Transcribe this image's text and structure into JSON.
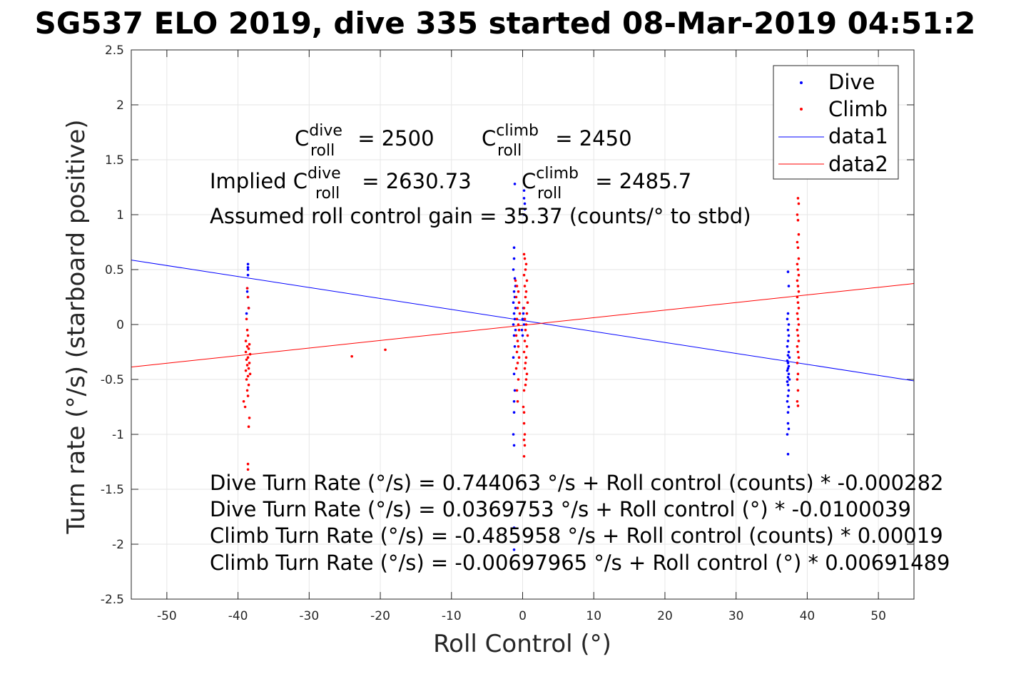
{
  "chart_data": {
    "type": "scatter",
    "title": "SG537 ELO 2019, dive 335 started 08-Mar-2019 04:51:2",
    "xlabel": "Roll Control (°)",
    "ylabel": "Turn rate (°/s) (starboard positive)",
    "xlim": [
      -55,
      55
    ],
    "ylim": [
      -2.5,
      2.5
    ],
    "x_ticks": [
      -50,
      -40,
      -30,
      -20,
      -10,
      0,
      10,
      20,
      30,
      40,
      50
    ],
    "y_ticks": [
      -2.5,
      -2,
      -1.5,
      -1,
      -0.5,
      0,
      0.5,
      1,
      1.5,
      2,
      2.5
    ],
    "grid": true,
    "legend_position": "top-right",
    "colors": {
      "dive": "#0000ff",
      "climb": "#ff0000",
      "axes": "#262626",
      "grid": "#e6e6e6"
    },
    "series": [
      {
        "name": "Dive",
        "kind": "points",
        "color": "#0000ff",
        "points": [
          [
            -38.6,
            0.55
          ],
          [
            -38.6,
            0.52
          ],
          [
            -38.6,
            0.5
          ],
          [
            -38.6,
            0.45
          ],
          [
            -38.7,
            0.33
          ],
          [
            -38.7,
            0.3
          ],
          [
            -38.6,
            0.25
          ],
          [
            -38.5,
            0.15
          ],
          [
            -38.8,
            0.1
          ],
          [
            -1.2,
            0.7
          ],
          [
            -1.2,
            0.6
          ],
          [
            -1.3,
            0.5
          ],
          [
            -1.1,
            0.42
          ],
          [
            -1.0,
            0.35
          ],
          [
            -1.2,
            0.3
          ],
          [
            -1.1,
            0.25
          ],
          [
            -1.3,
            0.2
          ],
          [
            -1.0,
            0.15
          ],
          [
            -1.2,
            0.1
          ],
          [
            -1.1,
            0.05
          ],
          [
            -1.3,
            0.0
          ],
          [
            -1.0,
            -0.05
          ],
          [
            -1.2,
            -0.1
          ],
          [
            -1.1,
            -0.2
          ],
          [
            -1.3,
            -0.3
          ],
          [
            -1.2,
            -0.45
          ],
          [
            -1.1,
            -0.6
          ],
          [
            -1.2,
            -0.7
          ],
          [
            -1.2,
            -0.8
          ],
          [
            -1.3,
            -1.0
          ],
          [
            -1.2,
            -1.1
          ],
          [
            -1.2,
            -1.85
          ],
          [
            -1.2,
            -2.05
          ],
          [
            -1.1,
            1.28
          ],
          [
            0.2,
            1.22
          ],
          [
            0.2,
            1.15
          ],
          [
            0.3,
            1.1
          ],
          [
            0.3,
            1.05
          ],
          [
            0.2,
            1.0
          ],
          [
            0.1,
            0.15
          ],
          [
            0.0,
            0.05
          ],
          [
            0.2,
            0.0
          ],
          [
            -0.1,
            -0.05
          ],
          [
            0.1,
            0.1
          ],
          [
            0.3,
            0.05
          ],
          [
            0.0,
            -0.1
          ],
          [
            37.3,
            0.48
          ],
          [
            37.4,
            0.35
          ],
          [
            37.3,
            0.1
          ],
          [
            37.2,
            0.05
          ],
          [
            37.4,
            0.0
          ],
          [
            37.3,
            -0.05
          ],
          [
            37.4,
            -0.1
          ],
          [
            37.3,
            -0.15
          ],
          [
            37.2,
            -0.2
          ],
          [
            37.4,
            -0.25
          ],
          [
            37.3,
            -0.28
          ],
          [
            37.5,
            -0.3
          ],
          [
            37.2,
            -0.33
          ],
          [
            37.3,
            -0.35
          ],
          [
            37.4,
            -0.38
          ],
          [
            37.3,
            -0.4
          ],
          [
            37.2,
            -0.42
          ],
          [
            37.4,
            -0.45
          ],
          [
            37.3,
            -0.48
          ],
          [
            37.5,
            -0.5
          ],
          [
            37.2,
            -0.52
          ],
          [
            37.3,
            -0.55
          ],
          [
            37.4,
            -0.6
          ],
          [
            37.3,
            -0.65
          ],
          [
            37.2,
            -0.7
          ],
          [
            37.4,
            -0.75
          ],
          [
            37.3,
            -0.8
          ],
          [
            37.3,
            -0.9
          ],
          [
            37.4,
            -0.95
          ],
          [
            37.2,
            -1.0
          ],
          [
            37.3,
            -1.18
          ]
        ]
      },
      {
        "name": "Climb",
        "kind": "points",
        "color": "#ff0000",
        "points": [
          [
            -38.7,
            0.33
          ],
          [
            -38.6,
            0.25
          ],
          [
            -38.5,
            0.15
          ],
          [
            -38.8,
            0.05
          ],
          [
            -38.7,
            -0.05
          ],
          [
            -38.6,
            -0.1
          ],
          [
            -38.9,
            -0.15
          ],
          [
            -38.4,
            -0.18
          ],
          [
            -38.7,
            -0.2
          ],
          [
            -38.5,
            -0.22
          ],
          [
            -38.9,
            -0.25
          ],
          [
            -38.3,
            -0.27
          ],
          [
            -38.6,
            -0.3
          ],
          [
            -38.8,
            -0.32
          ],
          [
            -38.4,
            -0.35
          ],
          [
            -38.7,
            -0.37
          ],
          [
            -38.5,
            -0.4
          ],
          [
            -38.9,
            -0.42
          ],
          [
            -38.3,
            -0.45
          ],
          [
            -38.6,
            -0.47
          ],
          [
            -38.8,
            -0.5
          ],
          [
            -38.5,
            -0.55
          ],
          [
            -38.7,
            -0.6
          ],
          [
            -38.6,
            -0.65
          ],
          [
            -39.2,
            -0.7
          ],
          [
            -39.0,
            -0.75
          ],
          [
            -38.4,
            -0.85
          ],
          [
            -38.5,
            -0.93
          ],
          [
            -38.6,
            -1.27
          ],
          [
            -38.6,
            -1.32
          ],
          [
            -24.0,
            -0.29
          ],
          [
            -19.3,
            -0.23
          ],
          [
            -1.0,
            0.4
          ],
          [
            -0.8,
            0.35
          ],
          [
            -0.6,
            0.3
          ],
          [
            -0.9,
            0.25
          ],
          [
            -0.5,
            0.2
          ],
          [
            -0.7,
            0.15
          ],
          [
            -0.4,
            0.1
          ],
          [
            -0.8,
            0.05
          ],
          [
            -0.6,
            0.0
          ],
          [
            -0.5,
            -0.05
          ],
          [
            -0.9,
            -0.1
          ],
          [
            -0.7,
            -0.15
          ],
          [
            -0.6,
            -0.2
          ],
          [
            -0.8,
            -0.25
          ],
          [
            -0.5,
            -0.3
          ],
          [
            -0.7,
            -0.35
          ],
          [
            -0.9,
            -0.4
          ],
          [
            -0.6,
            -0.5
          ],
          [
            -0.8,
            -0.6
          ],
          [
            -0.7,
            -0.7
          ],
          [
            0.2,
            0.64
          ],
          [
            0.3,
            0.6
          ],
          [
            0.5,
            0.55
          ],
          [
            0.4,
            0.5
          ],
          [
            0.2,
            0.45
          ],
          [
            0.6,
            0.4
          ],
          [
            0.3,
            0.35
          ],
          [
            0.5,
            0.3
          ],
          [
            0.4,
            0.25
          ],
          [
            0.7,
            0.2
          ],
          [
            0.2,
            0.15
          ],
          [
            0.6,
            0.1
          ],
          [
            0.3,
            0.05
          ],
          [
            0.5,
            0.0
          ],
          [
            0.4,
            -0.05
          ],
          [
            0.7,
            -0.1
          ],
          [
            0.3,
            -0.15
          ],
          [
            0.6,
            -0.2
          ],
          [
            0.2,
            -0.25
          ],
          [
            0.5,
            -0.3
          ],
          [
            0.4,
            -0.35
          ],
          [
            0.3,
            -0.4
          ],
          [
            0.6,
            -0.45
          ],
          [
            0.5,
            -0.5
          ],
          [
            0.4,
            -0.55
          ],
          [
            0.2,
            -0.6
          ],
          [
            0.1,
            -0.75
          ],
          [
            0.2,
            -0.8
          ],
          [
            0.2,
            -0.9
          ],
          [
            0.3,
            -1.0
          ],
          [
            0.2,
            -1.05
          ],
          [
            0.3,
            -1.1
          ],
          [
            0.2,
            -1.2
          ],
          [
            38.7,
            1.15
          ],
          [
            38.8,
            1.1
          ],
          [
            38.6,
            1.0
          ],
          [
            38.7,
            0.95
          ],
          [
            38.8,
            0.82
          ],
          [
            38.6,
            0.75
          ],
          [
            38.7,
            0.7
          ],
          [
            38.8,
            0.6
          ],
          [
            38.6,
            0.55
          ],
          [
            38.7,
            0.5
          ],
          [
            38.8,
            0.45
          ],
          [
            38.6,
            0.4
          ],
          [
            38.7,
            0.35
          ],
          [
            38.8,
            0.3
          ],
          [
            38.6,
            0.25
          ],
          [
            38.7,
            0.2
          ],
          [
            38.8,
            0.15
          ],
          [
            38.6,
            0.1
          ],
          [
            38.7,
            0.05
          ],
          [
            38.8,
            0.0
          ],
          [
            38.6,
            -0.05
          ],
          [
            38.7,
            -0.1
          ],
          [
            38.8,
            -0.15
          ],
          [
            38.6,
            -0.2
          ],
          [
            38.7,
            -0.25
          ],
          [
            38.8,
            -0.3
          ],
          [
            38.6,
            -0.35
          ],
          [
            38.7,
            -0.45
          ],
          [
            38.6,
            -0.5
          ],
          [
            38.7,
            -0.6
          ],
          [
            38.6,
            -0.7
          ],
          [
            38.7,
            -0.74
          ]
        ]
      },
      {
        "name": "data1",
        "kind": "line",
        "color": "#0000ff",
        "x": [
          -55,
          55
        ],
        "y": [
          0.587,
          -0.513
        ]
      },
      {
        "name": "data2",
        "kind": "line",
        "color": "#ff0000",
        "x": [
          -55,
          55
        ],
        "y": [
          -0.387,
          0.373
        ]
      }
    ],
    "annotations": {
      "c_roll_dive_prefix": "C",
      "c_roll_dive_sup": "dive",
      "c_roll_dive_sub": "roll",
      "c_roll_dive_value": " = 2500",
      "c_roll_climb_prefix": "C",
      "c_roll_climb_sup": "climb",
      "c_roll_climb_sub": "roll",
      "c_roll_climb_value": " = 2450",
      "implied_prefix": "Implied C",
      "implied_dive_sup": "dive",
      "implied_dive_sub": "roll",
      "implied_dive_value": " = 2630.73",
      "implied_climb_prefix": "C",
      "implied_climb_sup": "climb",
      "implied_climb_sub": "roll",
      "implied_climb_value": " = 2485.7",
      "gain_text": "Assumed roll control gain = 35.37 (counts/° to stbd)",
      "eq1": "Dive Turn Rate (°/s) = 0.744063 °/s + Roll control (counts) * -0.000282",
      "eq2": "Dive Turn Rate (°/s) = 0.0369753 °/s + Roll control (°) * -0.0100039",
      "eq3": "Climb Turn Rate (°/s) = -0.485958 °/s + Roll control (counts) * 0.00019",
      "eq4": "Climb Turn Rate (°/s) = -0.00697965 °/s + Roll control (°) * 0.00691489"
    }
  }
}
